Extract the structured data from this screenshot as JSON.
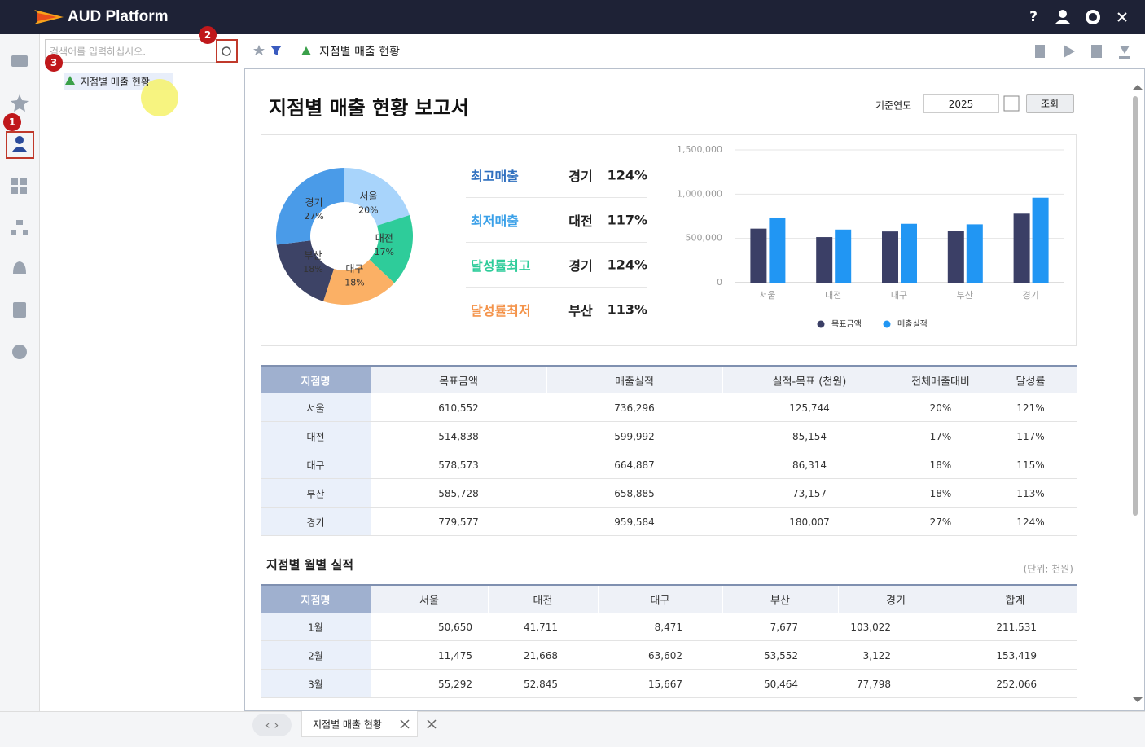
{
  "header": {
    "title": "AUD Platform",
    "help": "?"
  },
  "badges": [
    "1",
    "2",
    "3"
  ],
  "search": {
    "placeholder": "검색어를 입력하십시오."
  },
  "tree": {
    "item": "지점별 매출 현황"
  },
  "toolbar": {
    "title": "지점별 매출 현황"
  },
  "report": {
    "title": "지점별 매출 현황 보고서",
    "filter_label": "기준연도",
    "filter_value": "2025",
    "button": "조회"
  },
  "summary": {
    "rows": [
      [
        "최고매출",
        "경기",
        "124%"
      ],
      [
        "최저매출",
        "대전",
        "117%"
      ],
      [
        "달성률최고",
        "경기",
        "124%"
      ],
      [
        "달성률최저",
        "부산",
        "113%"
      ]
    ],
    "colors": [
      "#2f6fbf",
      "#3aa0e8",
      "#2ecc9a",
      "#f4934a"
    ]
  },
  "chart_data": [
    {
      "type": "donut",
      "categories": [
        "서울",
        "대전",
        "대구",
        "부산",
        "경기"
      ],
      "values": [
        20,
        17,
        18,
        18,
        27
      ],
      "value_labels": [
        "20%",
        "17%",
        "18%",
        "18%",
        "27%"
      ],
      "colors": [
        "#a8d4fb",
        "#2ecc9a",
        "#fbb065",
        "#3d4366",
        "#4a9be8"
      ]
    },
    {
      "type": "bar",
      "categories": [
        "서울",
        "대전",
        "대구",
        "부산",
        "경기"
      ],
      "series": [
        {
          "name": "목표금액",
          "color": "#3b3f66",
          "values": [
            610552,
            514838,
            578573,
            585728,
            779577
          ]
        },
        {
          "name": "매출실적",
          "color": "#2196f3",
          "values": [
            736296,
            599992,
            664887,
            658885,
            959584
          ]
        }
      ],
      "ylim": [
        0,
        1500000
      ],
      "yticks": [
        0,
        {
          "value": 500000,
          "label": "500,000"
        },
        {
          "value": 1000000,
          "label": "1,000,000"
        },
        {
          "value": 1500000,
          "label": "1,500,000"
        }
      ],
      "grid": true,
      "legend": "bottom"
    }
  ],
  "table": {
    "headers": [
      "지점명",
      "목표금액",
      "매출실적",
      "실적-목표 (천원)",
      "전체매출대비",
      "달성률"
    ],
    "rows": [
      [
        "서울",
        "610,552",
        "736,296",
        "125,744",
        "20%",
        "121%"
      ],
      [
        "대전",
        "514,838",
        "599,992",
        "85,154",
        "17%",
        "117%"
      ],
      [
        "대구",
        "578,573",
        "664,887",
        "86,314",
        "18%",
        "115%"
      ],
      [
        "부산",
        "585,728",
        "658,885",
        "73,157",
        "18%",
        "113%"
      ],
      [
        "경기",
        "779,577",
        "959,584",
        "180,007",
        "27%",
        "124%"
      ]
    ]
  },
  "monthly": {
    "title": "지점별 월별 실적",
    "unit": "(단위: 천원)",
    "headers": [
      "지점명",
      "서울",
      "대전",
      "대구",
      "부산",
      "경기",
      "합계"
    ],
    "rows": [
      [
        "1월",
        "50,650",
        "41,711",
        "8,471",
        "7,677",
        "103,022",
        "211,531"
      ],
      [
        "2월",
        "11,475",
        "21,668",
        "63,602",
        "53,552",
        "3,122",
        "153,419"
      ],
      [
        "3월",
        "55,292",
        "52,845",
        "15,667",
        "50,464",
        "77,798",
        "252,066"
      ]
    ]
  },
  "tabs": {
    "item": "지점별 매출 현황"
  }
}
